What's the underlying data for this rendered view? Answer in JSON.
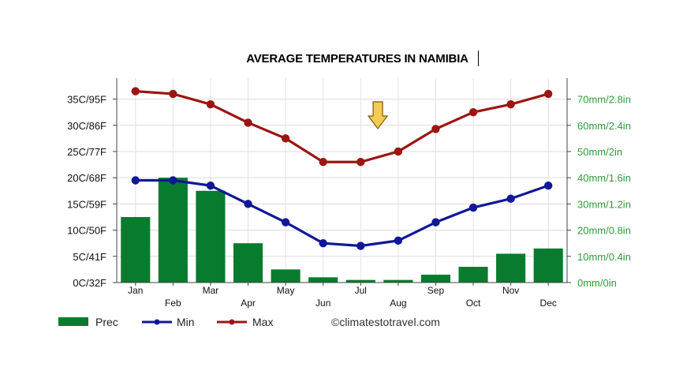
{
  "chart_data": {
    "type": "bar+line",
    "title": "AVERAGE TEMPERATURES IN NAMIBIA",
    "categories": [
      "Jan",
      "Feb",
      "Mar",
      "Apr",
      "May",
      "Jun",
      "Jul",
      "Aug",
      "Sep",
      "Oct",
      "Nov",
      "Dec"
    ],
    "left_axis": {
      "ticks": [
        "0C/32F",
        "5C/41F",
        "10C/50F",
        "15C/59F",
        "20C/68F",
        "25C/77F",
        "30C/86F",
        "35C/95F"
      ],
      "tick_values": [
        0,
        5,
        10,
        15,
        20,
        25,
        30,
        35
      ],
      "ylim": [
        0,
        39
      ]
    },
    "right_axis": {
      "ticks": [
        "0mm/0in",
        "10mm/0.4in",
        "20mm/0.8in",
        "30mm/1.2in",
        "40mm/1.6in",
        "50mm/2in",
        "60mm/2.4in",
        "70mm/2.8in"
      ],
      "tick_values": [
        0,
        10,
        20,
        30,
        40,
        50,
        60,
        70
      ],
      "ylim": [
        0,
        78
      ]
    },
    "series": [
      {
        "name": "Prec",
        "type": "bar",
        "axis": "right",
        "color": "#097b2e",
        "values": [
          25,
          40,
          35,
          15,
          5,
          2,
          1,
          1,
          3,
          6,
          11,
          13
        ]
      },
      {
        "name": "Min",
        "type": "line",
        "axis": "left",
        "color": "#101896",
        "values": [
          19.5,
          19.5,
          18.5,
          15.0,
          11.5,
          7.5,
          7.0,
          8.0,
          11.5,
          14.3,
          16.0,
          18.5
        ]
      },
      {
        "name": "Max",
        "type": "line",
        "axis": "left",
        "color": "#9b1612",
        "values": [
          36.5,
          36.0,
          34.0,
          30.5,
          27.5,
          23.0,
          23.0,
          25.0,
          29.3,
          32.5,
          34.0,
          36.0
        ]
      }
    ],
    "grid": true,
    "legend_position": "bottom-left",
    "marker": {
      "type": "down-arrow",
      "category": "Jul",
      "color": "#f5cb52"
    },
    "credit": "©climatestotravel.com"
  }
}
